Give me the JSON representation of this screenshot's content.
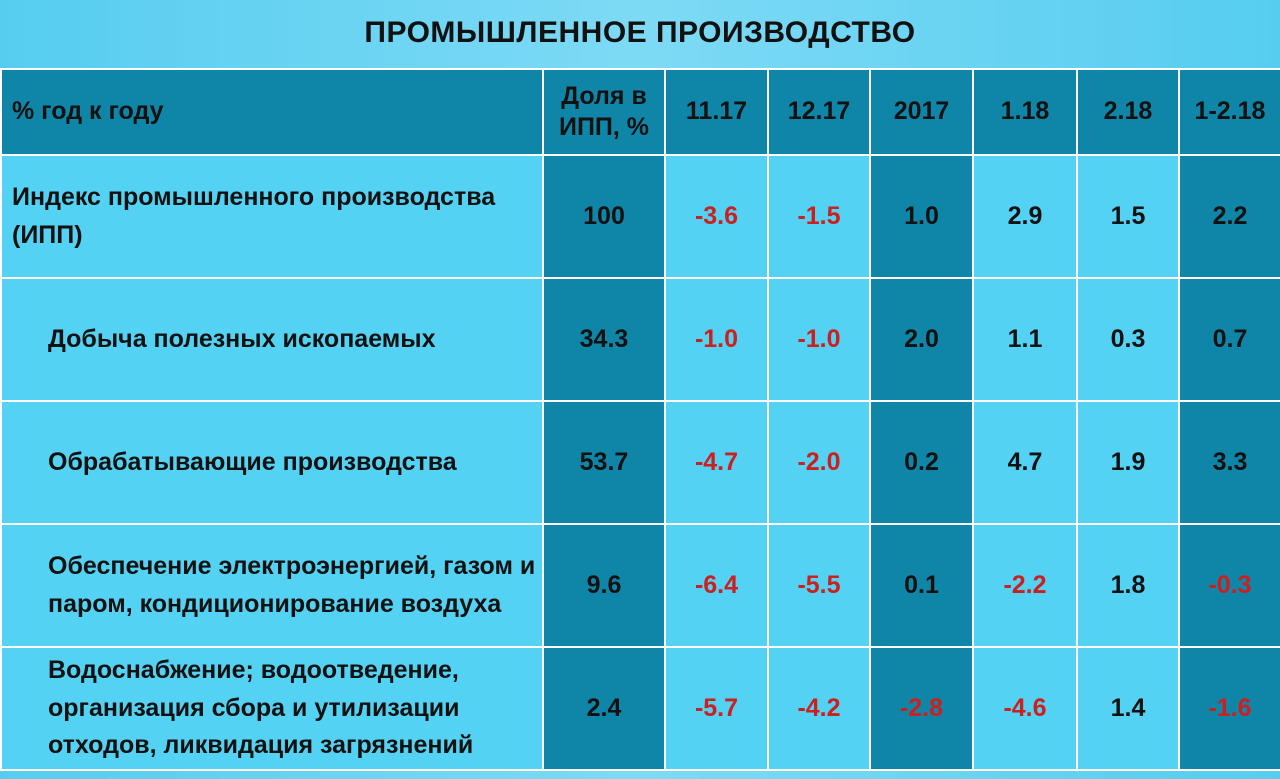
{
  "title": "ПРОМЫШЛЕННОЕ ПРОИЗВОДСТВО",
  "table": {
    "headers": [
      "% год к году",
      "Доля в ИПП, %",
      "11.17",
      "12.17",
      "2017",
      "1.18",
      "2.18",
      "1-2.18"
    ],
    "rows": [
      {
        "label": "Индекс промышленного производства (ИПП)",
        "indent": false,
        "values": [
          "100",
          "-3.6",
          "-1.5",
          "1.0",
          "2.9",
          "1.5",
          "2.2"
        ]
      },
      {
        "label": "Добыча полезных ископаемых",
        "indent": true,
        "values": [
          "34.3",
          "-1.0",
          "-1.0",
          "2.0",
          "1.1",
          "0.3",
          "0.7"
        ]
      },
      {
        "label": "Обрабатывающие производства",
        "indent": true,
        "values": [
          "53.7",
          "-4.7",
          "-2.0",
          "0.2",
          "4.7",
          "1.9",
          "3.3"
        ]
      },
      {
        "label": "Обеспечение электроэнергией, газом и паром, кондиционирование воздуха",
        "indent": true,
        "values": [
          "9.6",
          "-6.4",
          "-5.5",
          "0.1",
          "-2.2",
          "1.8",
          "-0.3"
        ]
      },
      {
        "label": "Водоснабжение; водоотведение, организация сбора и утилизации отходов, ликвидация загрязнений",
        "indent": true,
        "values": [
          "2.4",
          "-5.7",
          "-4.2",
          "-2.8",
          "-4.6",
          "1.4",
          "-1.6"
        ]
      }
    ]
  },
  "colors": {
    "background": "#56cdf0",
    "header_and_dark_columns": "#0f86a8",
    "light_cells": "#54d2f3",
    "negative_value": "#cc1f1f",
    "text": "#111111"
  }
}
